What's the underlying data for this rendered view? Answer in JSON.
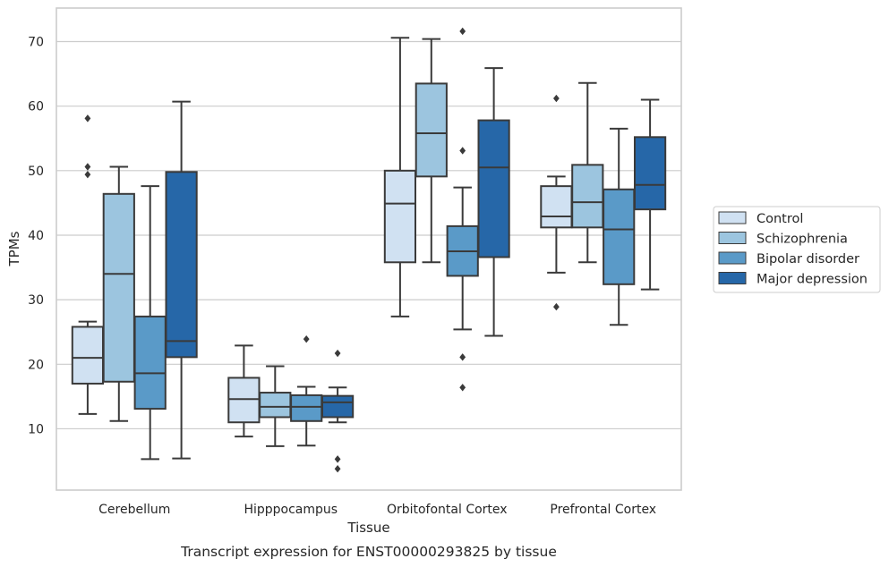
{
  "chart_data": {
    "type": "box",
    "caption": "Transcript expression for ENST00000293825 by tissue",
    "xlabel": "Tissue",
    "ylabel": "TPMs",
    "ylim": [
      0.5,
      75.2
    ],
    "yticks": [
      10,
      20,
      30,
      40,
      50,
      60,
      70
    ],
    "grid": "horizontal",
    "legend_position": "right",
    "categories": [
      "Cerebellum",
      "Hipppocampus",
      "Orbitofontal Cortex",
      "Prefrontal Cortex"
    ],
    "series": [
      {
        "name": "Control",
        "color": "#d0e1f2",
        "boxes": [
          {
            "q1": 17.0,
            "median": 21.0,
            "q3": 25.8,
            "whisker_low": 12.3,
            "whisker_high": 26.6,
            "outliers": [
              58.1,
              50.6,
              49.4
            ]
          },
          {
            "q1": 11.0,
            "median": 14.6,
            "q3": 17.9,
            "whisker_low": 8.8,
            "whisker_high": 22.9,
            "outliers": []
          },
          {
            "q1": 35.8,
            "median": 44.9,
            "q3": 50.0,
            "whisker_low": 27.4,
            "whisker_high": 70.6,
            "outliers": []
          },
          {
            "q1": 41.2,
            "median": 42.9,
            "q3": 47.6,
            "whisker_low": 34.2,
            "whisker_high": 49.1,
            "outliers": [
              61.2,
              28.9
            ]
          }
        ]
      },
      {
        "name": "Schizophrenia",
        "color": "#9cc5df",
        "boxes": [
          {
            "q1": 17.3,
            "median": 34.0,
            "q3": 46.4,
            "whisker_low": 11.2,
            "whisker_high": 50.6,
            "outliers": []
          },
          {
            "q1": 11.8,
            "median": 13.4,
            "q3": 15.6,
            "whisker_low": 7.3,
            "whisker_high": 19.7,
            "outliers": []
          },
          {
            "q1": 49.1,
            "median": 55.8,
            "q3": 63.5,
            "whisker_low": 35.8,
            "whisker_high": 70.4,
            "outliers": []
          },
          {
            "q1": 41.2,
            "median": 45.1,
            "q3": 50.9,
            "whisker_low": 35.8,
            "whisker_high": 63.6,
            "outliers": []
          }
        ]
      },
      {
        "name": "Bipolar disorder",
        "color": "#5a9ac8",
        "boxes": [
          {
            "q1": 13.1,
            "median": 18.6,
            "q3": 27.4,
            "whisker_low": 5.3,
            "whisker_high": 47.6,
            "outliers": []
          },
          {
            "q1": 11.2,
            "median": 13.4,
            "q3": 15.2,
            "whisker_low": 7.4,
            "whisker_high": 16.5,
            "outliers": [
              23.9
            ]
          },
          {
            "q1": 33.7,
            "median": 37.5,
            "q3": 41.4,
            "whisker_low": 25.4,
            "whisker_high": 47.4,
            "outliers": [
              71.6,
              53.1,
              21.1,
              16.4
            ]
          },
          {
            "q1": 32.4,
            "median": 40.9,
            "q3": 47.1,
            "whisker_low": 26.1,
            "whisker_high": 56.5,
            "outliers": []
          }
        ]
      },
      {
        "name": "Major depression",
        "color": "#2667a8",
        "boxes": [
          {
            "q1": 21.1,
            "median": 23.6,
            "q3": 49.8,
            "whisker_low": 5.4,
            "whisker_high": 60.7,
            "outliers": []
          },
          {
            "q1": 11.8,
            "median": 14.1,
            "q3": 15.1,
            "whisker_low": 11.0,
            "whisker_high": 16.4,
            "outliers": [
              21.7,
              5.3,
              3.8
            ]
          },
          {
            "q1": 36.6,
            "median": 50.5,
            "q3": 57.8,
            "whisker_low": 24.4,
            "whisker_high": 65.9,
            "outliers": []
          },
          {
            "q1": 44.0,
            "median": 47.8,
            "q3": 55.2,
            "whisker_low": 31.6,
            "whisker_high": 61.0,
            "outliers": []
          }
        ]
      }
    ]
  }
}
